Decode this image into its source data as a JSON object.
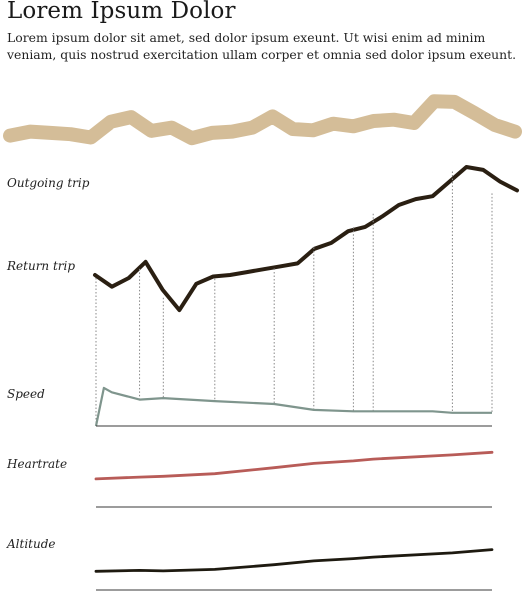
{
  "header": {
    "title": "Lorem Ipsum Dolor",
    "intro": "Lorem ipsum dolor sit amet, sed dolor ipsum exeunt. Ut wisi enim ad minim veniam, quis nostrud exercitation ullam corper et omnia sed dolor ipsum exeunt."
  },
  "colors": {
    "outgoing": "#d4bd98",
    "return": "#2a1f12",
    "speed": "#7f958d",
    "heartrate": "#b85c58",
    "altitude": "#1e1a10",
    "axis": "#3a3a3a",
    "guide": "#888888"
  },
  "chart_data": [
    {
      "type": "line",
      "name": "route-outgoing",
      "label": "Outgoing trip",
      "x": [
        0,
        4,
        8,
        12,
        16,
        20,
        24,
        28,
        32,
        36,
        40,
        44,
        48,
        52,
        56,
        60,
        64,
        68,
        72,
        76,
        80,
        84,
        88,
        92,
        96,
        100
      ],
      "y": [
        0.34,
        0.4,
        0.38,
        0.36,
        0.31,
        0.55,
        0.62,
        0.41,
        0.46,
        0.3,
        0.38,
        0.4,
        0.46,
        0.63,
        0.44,
        0.42,
        0.52,
        0.48,
        0.56,
        0.58,
        0.53,
        0.86,
        0.85,
        0.68,
        0.5,
        0.4
      ]
    },
    {
      "type": "line",
      "name": "route-return",
      "label": "Return trip",
      "x": [
        0,
        4,
        8,
        12,
        16,
        20,
        24,
        28,
        32,
        36,
        40,
        44,
        48,
        52,
        56,
        60,
        64,
        68,
        72,
        76,
        80,
        84,
        88,
        92,
        96,
        100
      ],
      "y": [
        0.26,
        0.18,
        0.24,
        0.35,
        0.16,
        0.02,
        0.2,
        0.25,
        0.26,
        0.28,
        0.3,
        0.32,
        0.34,
        0.44,
        0.48,
        0.56,
        0.59,
        0.66,
        0.74,
        0.78,
        0.8,
        0.9,
        1.0,
        0.98,
        0.9,
        0.84
      ]
    },
    {
      "type": "line",
      "label": "Speed",
      "x": [
        0,
        2,
        4,
        11,
        17,
        30,
        45,
        55,
        65,
        70,
        85,
        90,
        100
      ],
      "y": [
        0,
        26,
        23,
        18,
        19,
        17,
        15,
        11,
        10,
        10,
        10,
        9,
        9
      ]
    },
    {
      "type": "line",
      "label": "Heartrate",
      "x": [
        0,
        11,
        17,
        30,
        45,
        55,
        65,
        70,
        90,
        100
      ],
      "y": [
        120,
        122,
        123,
        126,
        133,
        138,
        141,
        143,
        148,
        151
      ]
    },
    {
      "type": "line",
      "label": "Altitude",
      "x": [
        0,
        11,
        17,
        30,
        45,
        55,
        65,
        70,
        90,
        100
      ],
      "y": [
        350,
        352,
        351,
        354,
        364,
        372,
        377,
        380,
        389,
        396
      ]
    }
  ],
  "markers": [
    0,
    11,
    17,
    30,
    45,
    55,
    65,
    70,
    90,
    100
  ]
}
